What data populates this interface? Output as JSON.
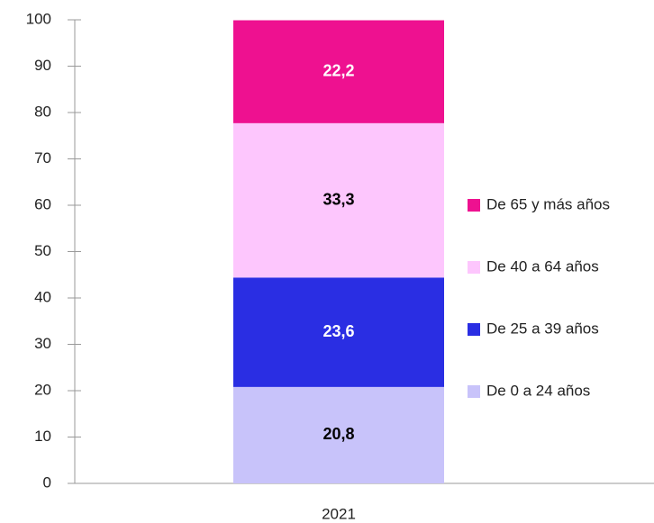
{
  "chart_data": {
    "type": "stacked_bar",
    "categories": [
      "2021"
    ],
    "series": [
      {
        "name": "De 0 a 24 años",
        "color": "#c8c3fa",
        "label_color": "#000000",
        "values": [
          20.8
        ],
        "value_labels": [
          "20,8"
        ]
      },
      {
        "name": "De 25 a 39 años",
        "color": "#2a2ee3",
        "label_color": "#ffffff",
        "values": [
          23.6
        ],
        "value_labels": [
          "23,6"
        ]
      },
      {
        "name": "De 40 a 64 años",
        "color": "#fdc6fd",
        "label_color": "#000000",
        "values": [
          33.3
        ],
        "value_labels": [
          "33,3"
        ]
      },
      {
        "name": "De 65 y más años",
        "color": "#ee1190",
        "label_color": "#ffffff",
        "values": [
          22.2
        ],
        "value_labels": [
          "22,2"
        ]
      }
    ],
    "ylim": [
      0,
      100
    ],
    "yticks": [
      0,
      10,
      20,
      30,
      40,
      50,
      60,
      70,
      80,
      90,
      100
    ],
    "grid": false,
    "legend": "right"
  }
}
